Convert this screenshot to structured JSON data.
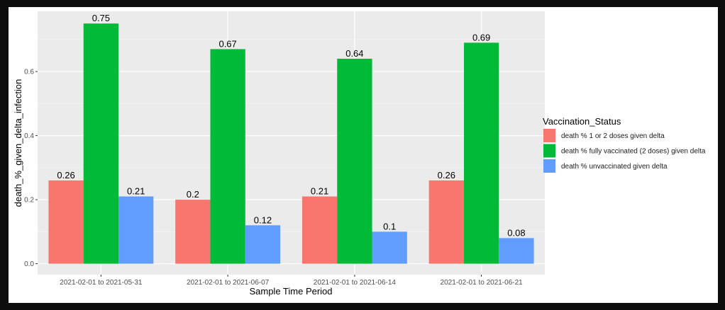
{
  "chart_data": {
    "type": "bar",
    "title": "",
    "xlabel": "Sample Time Period",
    "ylabel": "death_%_given_delta_infection",
    "categories": [
      "2021-02-01 to 2021-05-31",
      "2021-02-01 to 2021-06-07",
      "2021-02-01 to 2021-06-14",
      "2021-02-01 to 2021-06-21"
    ],
    "series": [
      {
        "name": "death % 1 or 2 doses given delta",
        "color": "#F8766D",
        "values": [
          0.26,
          0.2,
          0.21,
          0.26
        ]
      },
      {
        "name": "death % fully vaccinated (2 doses) given delta",
        "color": "#00BA38",
        "values": [
          0.75,
          0.67,
          0.64,
          0.69
        ]
      },
      {
        "name": "death % unvaccinated given delta",
        "color": "#619CFF",
        "values": [
          0.21,
          0.12,
          0.1,
          0.08
        ]
      }
    ],
    "data_labels": [
      [
        "0.26",
        "0.2",
        "0.21",
        "0.26"
      ],
      [
        "0.75",
        "0.67",
        "0.64",
        "0.69"
      ],
      [
        "0.21",
        "0.12",
        "0.1",
        "0.08"
      ]
    ],
    "yticks": [
      0.0,
      0.2,
      0.4,
      0.6
    ],
    "ytick_labels": [
      "0.0",
      "0.2",
      "0.4",
      "0.6"
    ],
    "ylim": [
      -0.034,
      0.788
    ],
    "grid": true,
    "legend": {
      "title": "Vaccination_Status",
      "position": "right"
    }
  }
}
